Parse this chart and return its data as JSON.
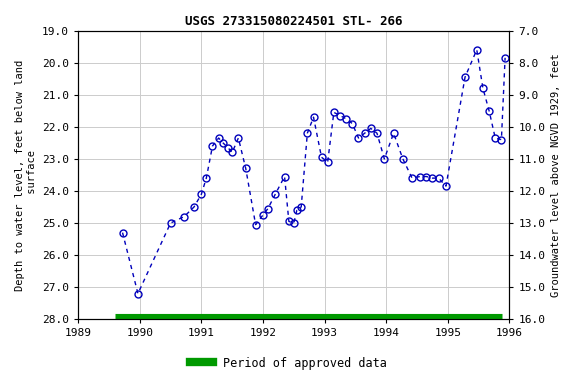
{
  "title": "USGS 273315080224501 STL- 266",
  "ylabel_left": "Depth to water level, feet below land\n surface",
  "ylabel_right": "Groundwater level above NGVD 1929, feet",
  "xlim": [
    1989,
    1996
  ],
  "ylim_left": [
    19.0,
    28.0
  ],
  "ylim_right": [
    16.0,
    7.0
  ],
  "yticks_left": [
    19.0,
    20.0,
    21.0,
    22.0,
    23.0,
    24.0,
    25.0,
    26.0,
    27.0,
    28.0
  ],
  "yticks_right": [
    16.0,
    15.0,
    14.0,
    13.0,
    12.0,
    11.0,
    10.0,
    9.0,
    8.0,
    7.0
  ],
  "ytick_right_labels": [
    "16.0",
    "15.0",
    "14.0",
    "13.0",
    "12.0",
    "11.0",
    "10.0",
    "9.0",
    "8.0",
    "7.0"
  ],
  "xticks": [
    1989,
    1990,
    1991,
    1992,
    1993,
    1994,
    1995,
    1996
  ],
  "data_x": [
    1989.72,
    1989.97,
    1990.5,
    1990.72,
    1990.88,
    1991.0,
    1991.08,
    1991.18,
    1991.28,
    1991.35,
    1991.43,
    1991.5,
    1991.6,
    1991.72,
    1991.88,
    1992.0,
    1992.08,
    1992.2,
    1992.35,
    1992.42,
    1992.5,
    1992.55,
    1992.62,
    1992.72,
    1992.82,
    1992.95,
    1993.05,
    1993.15,
    1993.25,
    1993.35,
    1993.45,
    1993.55,
    1993.65,
    1993.75,
    1993.85,
    1993.97,
    1994.12,
    1994.27,
    1994.42,
    1994.55,
    1994.65,
    1994.75,
    1994.85,
    1994.97,
    1995.28,
    1995.47,
    1995.57,
    1995.67,
    1995.77,
    1995.87,
    1995.93
  ],
  "data_y": [
    25.3,
    27.2,
    25.0,
    24.8,
    24.5,
    24.1,
    23.6,
    22.6,
    22.35,
    22.5,
    22.65,
    22.8,
    22.35,
    23.3,
    25.05,
    24.75,
    24.55,
    24.1,
    23.55,
    24.95,
    25.0,
    24.6,
    24.5,
    22.2,
    21.7,
    22.95,
    23.1,
    21.55,
    21.65,
    21.75,
    21.9,
    22.35,
    22.2,
    22.05,
    22.2,
    23.0,
    22.2,
    23.0,
    23.6,
    23.55,
    23.55,
    23.6,
    23.6,
    23.85,
    20.45,
    19.6,
    20.8,
    21.5,
    22.35,
    22.4,
    19.85
  ],
  "line_color": "#0000bb",
  "marker_color": "#0000bb",
  "green_bar_color": "#009900",
  "green_bar_y": 28.0,
  "green_bar_xstart": 1989.6,
  "green_bar_xend": 1995.88,
  "legend_label": "Period of approved data",
  "background_color": "#ffffff",
  "grid_color": "#cccccc",
  "font_family": "monospace"
}
